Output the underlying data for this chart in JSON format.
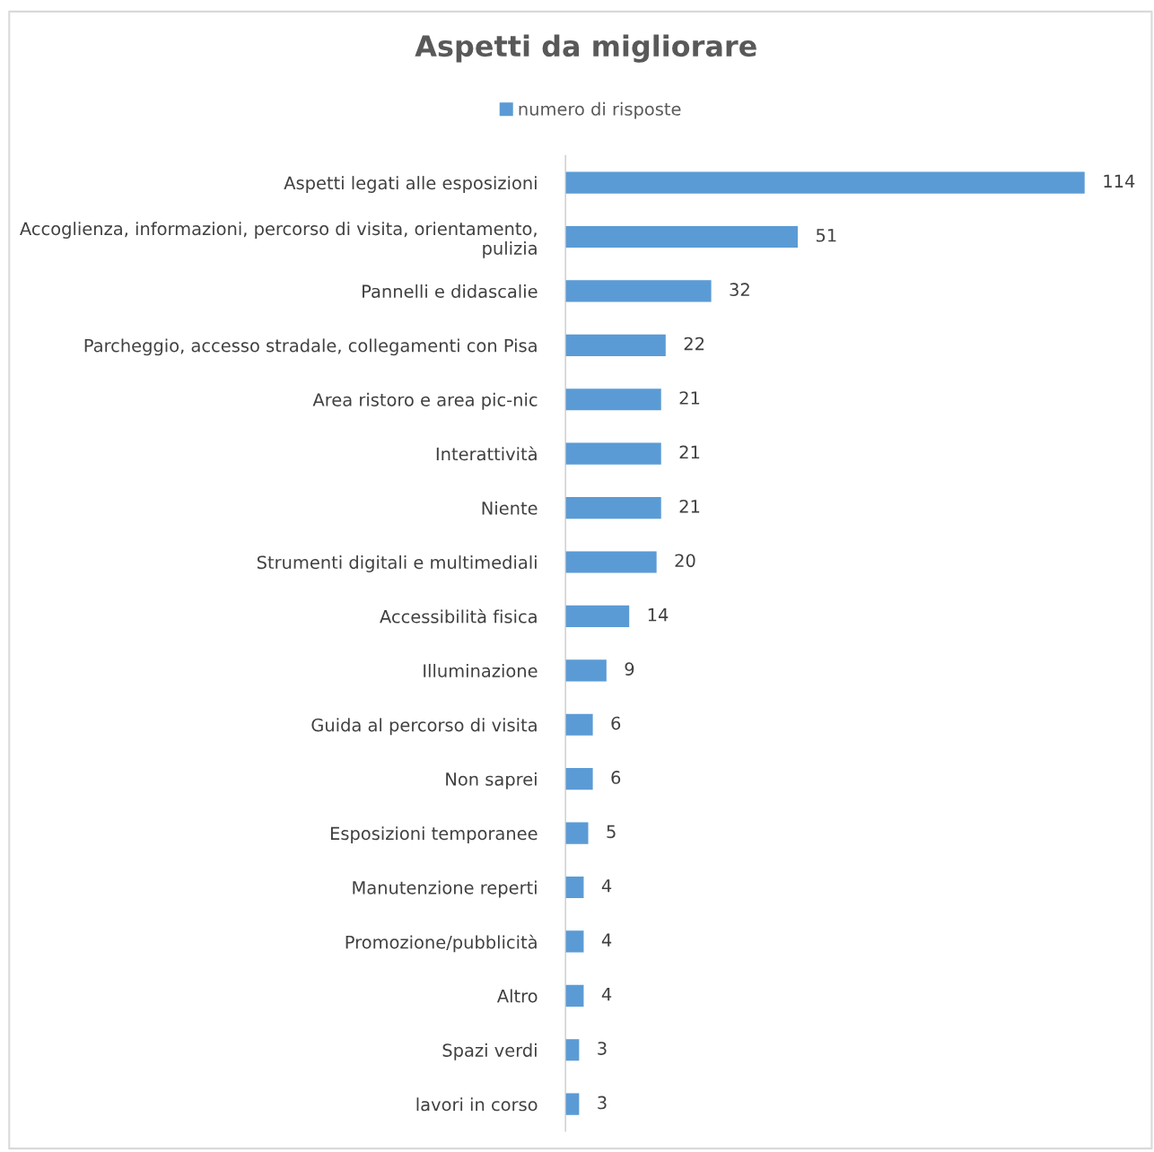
{
  "chart_data": {
    "type": "bar",
    "orientation": "horizontal",
    "title": "Aspetti da migliorare",
    "legend": "top",
    "data_labels": true,
    "tick_labels": "y",
    "categories": [
      "Aspetti legati alle esposizioni",
      "Accoglienza, informazioni, percorso di visita, orientamento,\npulizia",
      "Pannelli e didascalie",
      "Parcheggio, accesso stradale, collegamenti con Pisa",
      "Area ristoro e area pic-nic",
      "Interattività",
      "Niente",
      "Strumenti digitali e multimediali",
      "Accessibilità fisica",
      "Illuminazione",
      "Guida al percorso di visita",
      "Non saprei",
      "Esposizioni temporanee",
      "Manutenzione reperti",
      "Promozione/pubblicità",
      "Altro",
      "Spazi verdi",
      "lavori in corso"
    ],
    "series": [
      {
        "name": "numero di risposte",
        "color": "#5b9bd5",
        "values": [
          114,
          51,
          32,
          22,
          21,
          21,
          21,
          20,
          14,
          9,
          6,
          6,
          5,
          4,
          4,
          4,
          3,
          3
        ]
      }
    ]
  }
}
